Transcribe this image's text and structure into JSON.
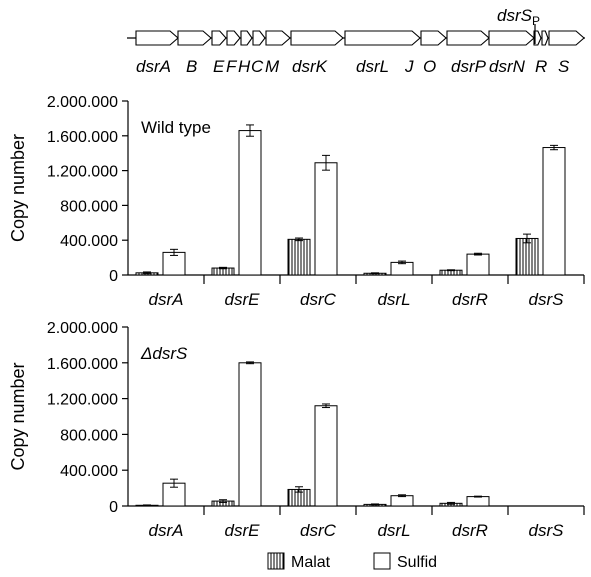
{
  "operon": {
    "genes": [
      "dsrA",
      "B",
      "E",
      "F",
      "H",
      "C",
      "M",
      "dsrK",
      "dsrL",
      "J",
      "O",
      "dsrP",
      "dsrN",
      "R",
      "S"
    ],
    "promoter_label": "dsrS",
    "promoter_subscript": "P"
  },
  "legend": [
    {
      "label": "Malat",
      "pattern": "hatched"
    },
    {
      "label": "Sulfid",
      "pattern": "white"
    }
  ],
  "chart_data": [
    {
      "type": "bar",
      "title": "Wild type",
      "ylabel": "Copy number",
      "ylim": [
        0,
        2000000
      ],
      "yticks": [
        0,
        400000,
        800000,
        1200000,
        1600000,
        2000000
      ],
      "ytick_labels": [
        "0",
        "400.000",
        "800.000",
        "1.200.000",
        "1.600.000",
        "2.000.000"
      ],
      "categories": [
        "dsrA",
        "dsrE",
        "dsrC",
        "dsrL",
        "dsrR",
        "dsrS"
      ],
      "series": [
        {
          "name": "Malat",
          "values": [
            25000,
            80000,
            410000,
            20000,
            55000,
            420000
          ],
          "errors": [
            10000,
            8000,
            15000,
            5000,
            5000,
            50000
          ]
        },
        {
          "name": "Sulfid",
          "values": [
            260000,
            1660000,
            1290000,
            145000,
            240000,
            1465000
          ],
          "errors": [
            35000,
            65000,
            85000,
            15000,
            10000,
            25000
          ]
        }
      ]
    },
    {
      "type": "bar",
      "title": "ΔdsrS",
      "ylabel": "Copy number",
      "ylim": [
        0,
        2000000
      ],
      "yticks": [
        0,
        400000,
        800000,
        1200000,
        1600000,
        2000000
      ],
      "ytick_labels": [
        "0",
        "400.000",
        "800.000",
        "1.200.000",
        "1.600.000",
        "2.000.000"
      ],
      "categories": [
        "dsrA",
        "dsrE",
        "dsrC",
        "dsrL",
        "dsrR",
        "dsrS"
      ],
      "series": [
        {
          "name": "Malat",
          "values": [
            8000,
            55000,
            185000,
            18000,
            30000,
            0
          ],
          "errors": [
            4000,
            15000,
            30000,
            5000,
            10000,
            0
          ]
        },
        {
          "name": "Sulfid",
          "values": [
            255000,
            1600000,
            1120000,
            115000,
            105000,
            0
          ],
          "errors": [
            45000,
            10000,
            20000,
            10000,
            5000,
            0
          ]
        }
      ]
    }
  ]
}
